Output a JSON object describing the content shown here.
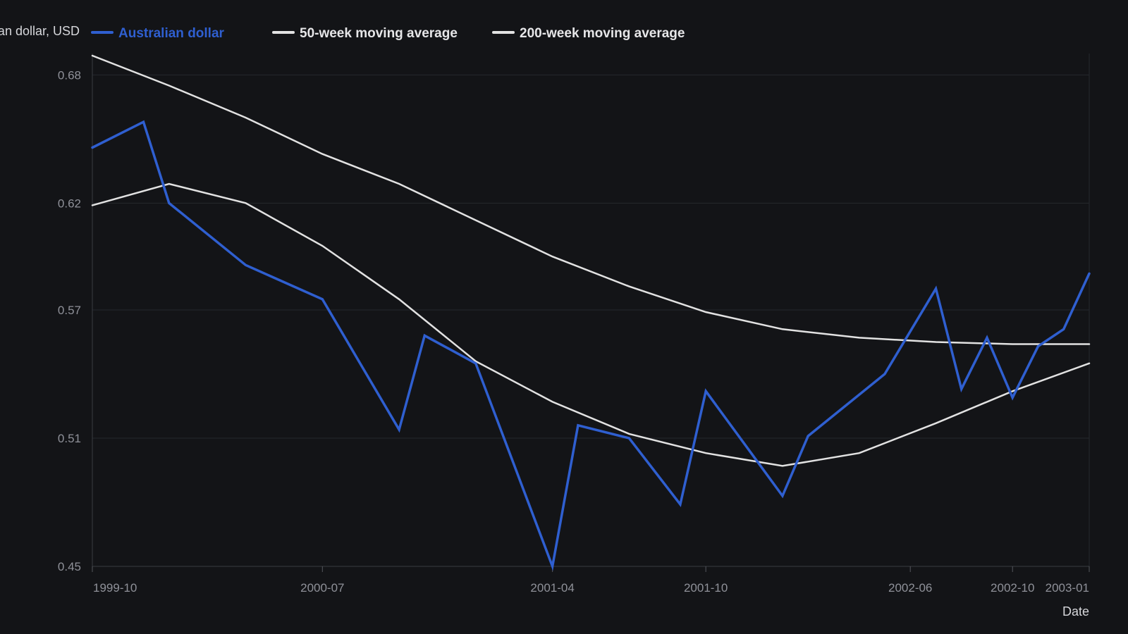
{
  "chart_data": {
    "type": "line",
    "xlabel": "Date",
    "ylabel": "Australian dollar, USD",
    "ylim": [
      0.45,
      0.69
    ],
    "y_ticks": [
      0.45,
      0.51,
      0.57,
      0.62,
      0.68
    ],
    "y_tick_labels": [
      "0.45",
      "0.51",
      "0.57",
      "0.62",
      "0.68"
    ],
    "x_range": [
      "1999-10",
      "2003-01"
    ],
    "x_ticks": [
      "1999-10",
      "2000-07",
      "2001-04",
      "2001-10",
      "2002-06",
      "2002-10",
      "2003-01"
    ],
    "grid": true,
    "legend_position": "top",
    "series": [
      {
        "name": "Australian dollar",
        "color": "#2f5fd0",
        "x": [
          "1999-10",
          "1999-12",
          "2000-01",
          "2000-04",
          "2000-07",
          "2000-10",
          "2000-11",
          "2001-01",
          "2001-04",
          "2001-05",
          "2001-07",
          "2001-09",
          "2001-10",
          "2002-01",
          "2002-02",
          "2002-05",
          "2002-07",
          "2002-08",
          "2002-09",
          "2002-10",
          "2002-11",
          "2002-12",
          "2003-01"
        ],
        "values": [
          0.646,
          0.658,
          0.62,
          0.591,
          0.575,
          0.514,
          0.558,
          0.545,
          0.45,
          0.516,
          0.51,
          0.479,
          0.532,
          0.483,
          0.511,
          0.54,
          0.58,
          0.533,
          0.557,
          0.529,
          0.553,
          0.561,
          0.587
        ]
      },
      {
        "name": "50-week moving average",
        "color": "#e2e2e2",
        "x": [
          "1999-10",
          "2000-01",
          "2000-04",
          "2000-07",
          "2000-10",
          "2001-01",
          "2001-04",
          "2001-07",
          "2001-10",
          "2002-01",
          "2002-04",
          "2002-07",
          "2002-10",
          "2003-01"
        ],
        "values": [
          0.619,
          0.629,
          0.62,
          0.6,
          0.575,
          0.546,
          0.527,
          0.512,
          0.503,
          0.497,
          0.503,
          0.517,
          0.532,
          0.545
        ]
      },
      {
        "name": "200-week moving average",
        "color": "#e2e2e2",
        "x": [
          "1999-10",
          "2000-01",
          "2000-04",
          "2000-07",
          "2000-10",
          "2001-01",
          "2001-04",
          "2001-07",
          "2001-10",
          "2002-01",
          "2002-04",
          "2002-07",
          "2002-10",
          "2003-01"
        ],
        "values": [
          0.689,
          0.675,
          0.66,
          0.643,
          0.629,
          0.612,
          0.595,
          0.581,
          0.569,
          0.561,
          0.557,
          0.555,
          0.554,
          0.554
        ]
      }
    ]
  }
}
